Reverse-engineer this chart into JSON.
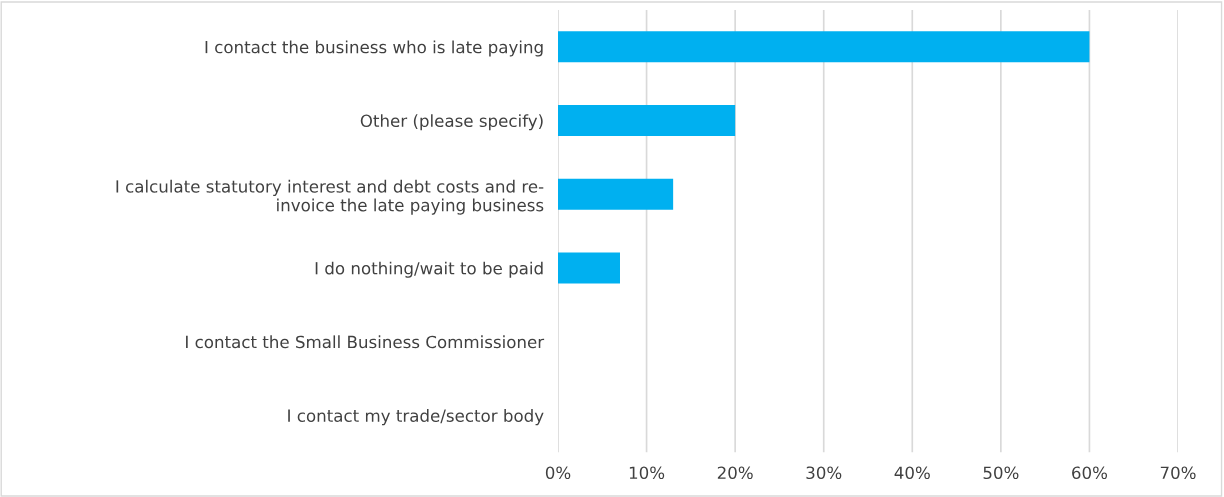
{
  "chart_data": {
    "type": "bar",
    "orientation": "horizontal",
    "categories": [
      "I contact the business who is late paying",
      "Other (please specify)",
      "I calculate statutory interest and debt costs and re-\ninvoice the late paying business",
      "I do nothing/wait to be paid",
      "I contact the Small Business Commissioner",
      "I contact my trade/sector body"
    ],
    "values": [
      60,
      20,
      13,
      7,
      0,
      0
    ],
    "color": "#00b0f0",
    "xlim": [
      0,
      70
    ],
    "xticks": [
      {
        "value": 0,
        "label": "0%"
      },
      {
        "value": 10,
        "label": "10%"
      },
      {
        "value": 20,
        "label": "20%"
      },
      {
        "value": 30,
        "label": "30%"
      },
      {
        "value": 40,
        "label": "40%"
      },
      {
        "value": 50,
        "label": "50%"
      },
      {
        "value": 60,
        "label": "60%"
      },
      {
        "value": 70,
        "label": "70%"
      }
    ],
    "grid": "x",
    "legend": false
  }
}
